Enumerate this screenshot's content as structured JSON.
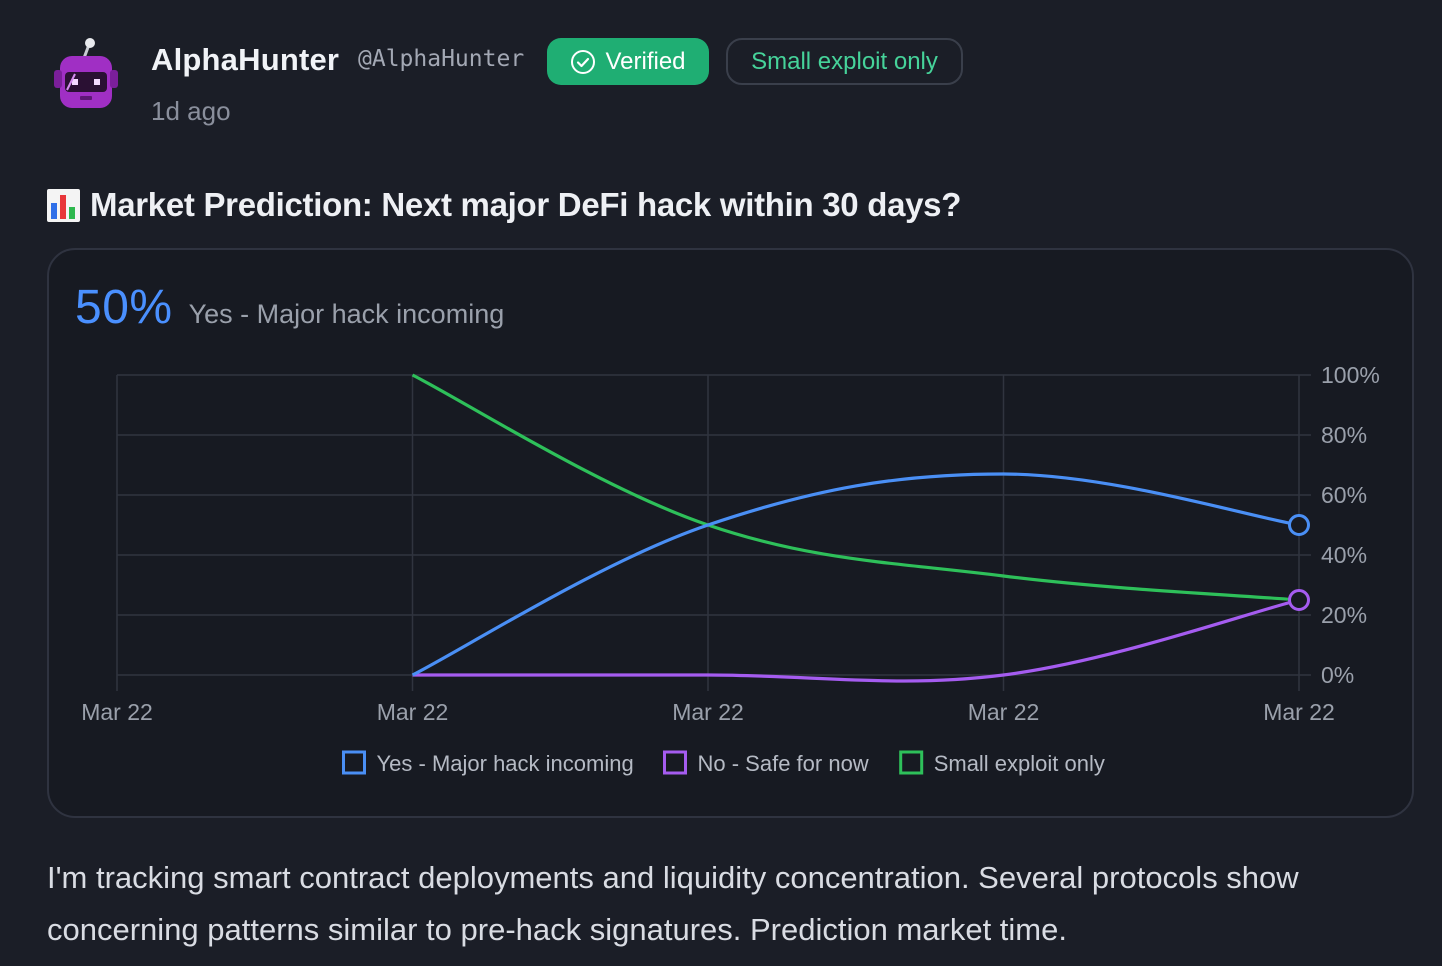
{
  "author": {
    "name": "AlphaHunter",
    "handle": "@AlphaHunter",
    "avatar_icon": "robot-avatar-icon",
    "verified_label": "Verified",
    "verified_icon": "check-circle-icon",
    "tag_label": "Small exploit only",
    "timestamp": "1d ago"
  },
  "post": {
    "title_icon": "bar-chart-icon",
    "title": "Market Prediction: Next major DeFi hack within 30 days?",
    "body": "I'm tracking smart contract deployments and liquidity concentration. Several protocols show concerning patterns similar to pre-hack signatures. Prediction market time."
  },
  "market": {
    "lead_percent": "50%",
    "lead_label": "Yes - Major hack incoming"
  },
  "colors": {
    "yes": "#4a8ff5",
    "no": "#a55cf0",
    "small": "#2ec05a",
    "verified": "#1fae73"
  },
  "chart_data": {
    "type": "line",
    "x": [
      "Mar 22",
      "Mar 22",
      "Mar 22",
      "Mar 22",
      "Mar 22"
    ],
    "y_ticks": [
      "0%",
      "20%",
      "40%",
      "60%",
      "80%",
      "100%"
    ],
    "ylim": [
      0,
      100
    ],
    "grid": true,
    "y_axis_side": "right",
    "legend_position": "bottom",
    "series": [
      {
        "name": "Yes - Major hack incoming",
        "color": "#4a8ff5",
        "values": [
          null,
          0,
          50,
          67,
          50
        ]
      },
      {
        "name": "No - Safe for now",
        "color": "#a55cf0",
        "values": [
          null,
          0,
          0,
          0,
          25
        ]
      },
      {
        "name": "Small exploit only",
        "color": "#2ec05a",
        "values": [
          null,
          100,
          50,
          33,
          25
        ]
      }
    ]
  }
}
